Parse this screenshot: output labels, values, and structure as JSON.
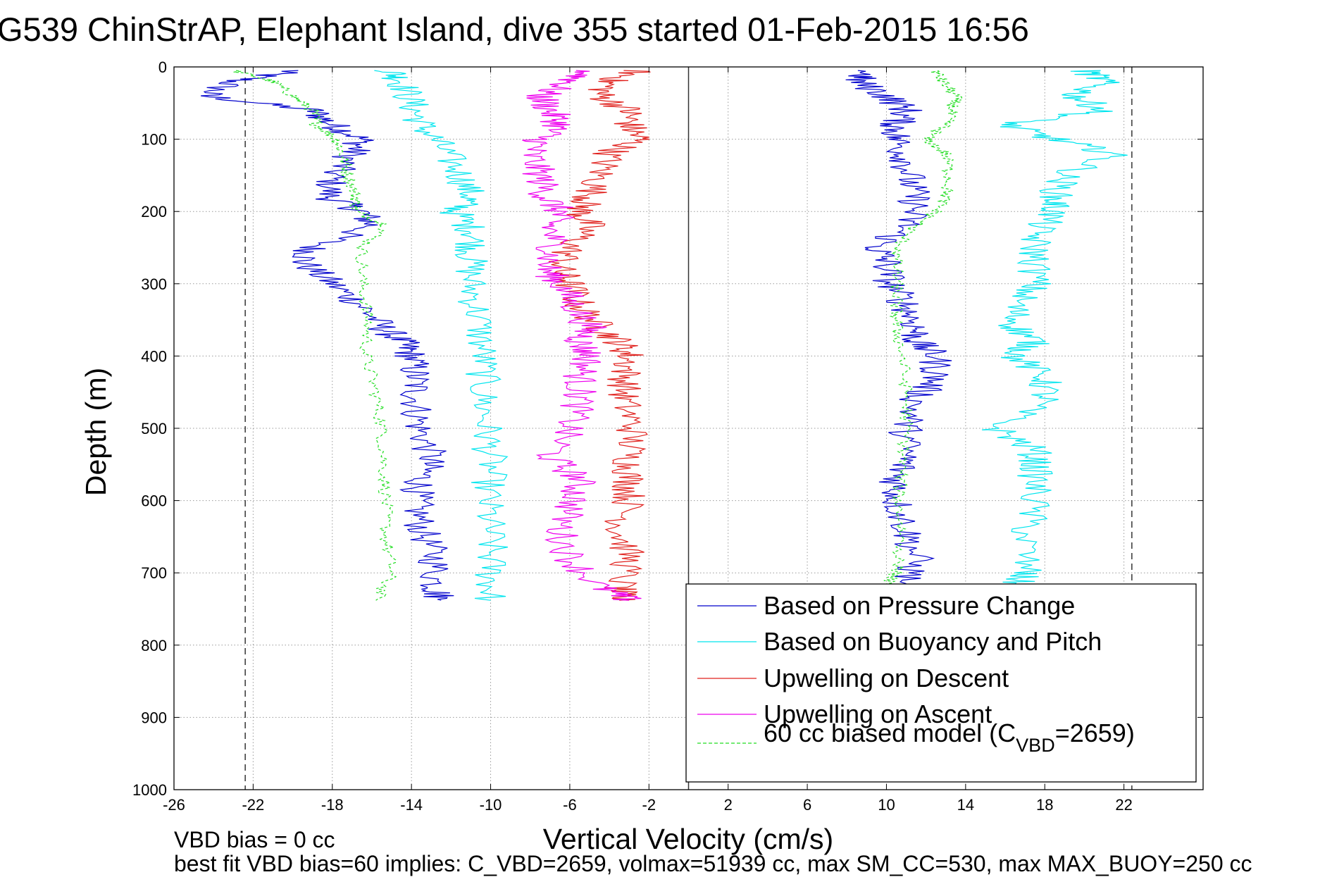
{
  "chart_data": {
    "type": "line",
    "title": "G539 ChinStrAP, Elephant Island, dive 355 started 01-Feb-2015 16:56",
    "xlabel": "Vertical Velocity (cm/s)",
    "ylabel": "Depth (m)",
    "xlim": [
      -26,
      26
    ],
    "ylim": [
      0,
      1000
    ],
    "y_reversed": true,
    "grid": true,
    "xticks": [
      -26,
      -22,
      -18,
      -14,
      -10,
      -6,
      -2,
      2,
      6,
      10,
      14,
      18,
      22
    ],
    "yticks": [
      0,
      100,
      200,
      300,
      400,
      500,
      600,
      700,
      800,
      900,
      1000
    ],
    "legend_placement": "bottom-right",
    "legend": [
      {
        "label": "Based on Pressure Change",
        "color": "#0000cc",
        "dash": false
      },
      {
        "label": "Based on Buoyancy and Pitch",
        "color": "#00e5ee",
        "dash": false
      },
      {
        "label": "Upwelling on Descent",
        "color": "#e0201c",
        "dash": false
      },
      {
        "label": "Upwelling on Ascent",
        "color": "#ee00ee",
        "dash": false
      },
      {
        "label_pre": "60 cc biased model (C",
        "label_sub": "VBD",
        "label_post": "=2659)",
        "color": "#22dd22",
        "dash": true
      }
    ],
    "reference_lines": {
      "x_solid": 0,
      "x_dashed": [
        -22.4,
        22.4
      ]
    },
    "series": [
      {
        "key": "pressure_descent",
        "color": "#0000cc",
        "dash": false,
        "y": [
          5,
          20,
          40,
          60,
          80,
          100,
          120,
          150,
          180,
          200,
          220,
          250,
          270,
          300,
          330,
          360,
          380,
          400,
          430,
          460,
          500,
          540,
          570,
          600,
          640,
          680,
          720,
          738
        ],
        "x": [
          -20,
          -23,
          -24.5,
          -19,
          -18,
          -16.5,
          -17,
          -18,
          -18.2,
          -16.5,
          -16,
          -19,
          -19.5,
          -18,
          -16.5,
          -15.5,
          -14.5,
          -14,
          -13.8,
          -13.8,
          -13.6,
          -13,
          -13.5,
          -13.8,
          -13.5,
          -12.8,
          -12.8,
          -12.5
        ]
      },
      {
        "key": "buoyancy_descent",
        "color": "#00e5ee",
        "dash": false,
        "y": [
          5,
          20,
          50,
          80,
          110,
          150,
          180,
          200,
          230,
          260,
          300,
          350,
          400,
          450,
          500,
          550,
          600,
          650,
          700,
          738
        ],
        "x": [
          -15,
          -14.5,
          -14,
          -13.5,
          -12.5,
          -11.5,
          -11,
          -11.8,
          -10.8,
          -11,
          -11,
          -10.6,
          -10.4,
          -10.4,
          -10.2,
          -10,
          -10.2,
          -10,
          -10,
          -10
        ]
      },
      {
        "key": "model_descent",
        "color": "#22dd22",
        "dash": true,
        "y": [
          5,
          20,
          40,
          60,
          80,
          100,
          120,
          150,
          180,
          200,
          220,
          250,
          300,
          350,
          400,
          450,
          500,
          550,
          600,
          650,
          700,
          738
        ],
        "x": [
          -23,
          -21,
          -20,
          -19,
          -18.8,
          -17.8,
          -17.5,
          -17.2,
          -16.8,
          -16.8,
          -15.2,
          -16.5,
          -16.5,
          -16.2,
          -16.3,
          -15.8,
          -15.5,
          -15.4,
          -15.3,
          -15.3,
          -15,
          -15.8
        ]
      },
      {
        "key": "upwelling_descent",
        "color": "#e0201c",
        "dash": false,
        "y": [
          5,
          20,
          40,
          60,
          80,
          100,
          120,
          150,
          180,
          200,
          220,
          250,
          280,
          300,
          330,
          360,
          380,
          400,
          430,
          460,
          500,
          540,
          570,
          600,
          640,
          680,
          720,
          738
        ],
        "x": [
          -2.5,
          -4,
          -4.5,
          -3,
          -3,
          -2.5,
          -4,
          -4.5,
          -5,
          -5.5,
          -5,
          -6,
          -6.5,
          -6,
          -5.5,
          -4.5,
          -3.5,
          -3,
          -3.2,
          -3.3,
          -2.8,
          -3,
          -3,
          -3,
          -3.5,
          -3,
          -3.5,
          -3.5
        ]
      },
      {
        "key": "upwelling_ascent",
        "color": "#ee00ee",
        "dash": false,
        "y": [
          5,
          20,
          40,
          60,
          80,
          100,
          120,
          150,
          180,
          200,
          220,
          250,
          280,
          300,
          330,
          360,
          380,
          400,
          430,
          460,
          500,
          540,
          570,
          600,
          640,
          680,
          720,
          738
        ],
        "x": [
          -5,
          -6,
          -7.5,
          -7,
          -6.5,
          -7.5,
          -8,
          -7.5,
          -7.2,
          -6.5,
          -7,
          -6.8,
          -7.2,
          -6.5,
          -5.8,
          -5,
          -5.5,
          -5,
          -5.5,
          -5.5,
          -6,
          -7,
          -5.5,
          -5.8,
          -6.5,
          -6,
          -4.5,
          -3
        ]
      },
      {
        "key": "pressure_ascent",
        "color": "#0000cc",
        "dash": false,
        "y": [
          5,
          20,
          40,
          60,
          80,
          100,
          130,
          160,
          190,
          220,
          250,
          270,
          300,
          330,
          360,
          380,
          400,
          430,
          460,
          500,
          540,
          570,
          600,
          640,
          680,
          715
        ],
        "x": [
          9,
          8.5,
          10,
          11,
          10.5,
          10.5,
          11,
          11.2,
          11.5,
          11,
          9.5,
          10,
          10.2,
          11,
          11.5,
          11.5,
          12.5,
          12.5,
          11.5,
          11,
          11,
          10.5,
          10.5,
          11,
          11.5,
          11
        ]
      },
      {
        "key": "buoyancy_ascent",
        "color": "#00e5ee",
        "dash": false,
        "y": [
          5,
          20,
          40,
          60,
          80,
          100,
          120,
          150,
          180,
          200,
          230,
          260,
          300,
          330,
          360,
          380,
          400,
          430,
          460,
          500,
          530,
          560,
          600,
          650,
          700,
          715
        ],
        "x": [
          20,
          21,
          19.5,
          21,
          16,
          18.5,
          21.5,
          19,
          18.5,
          18.5,
          17.5,
          17.5,
          17.5,
          16.5,
          16.5,
          17.5,
          16.5,
          18,
          18,
          15.5,
          17.5,
          17.5,
          17.5,
          17,
          17,
          16.5
        ]
      },
      {
        "key": "model_ascent",
        "color": "#22dd22",
        "dash": true,
        "y": [
          5,
          20,
          40,
          60,
          80,
          100,
          120,
          150,
          180,
          200,
          230,
          260,
          300,
          330,
          360,
          400,
          450,
          500,
          550,
          600,
          650,
          700,
          715
        ],
        "x": [
          12.5,
          12.8,
          13.5,
          13.3,
          13,
          12,
          13,
          13.2,
          13,
          12.5,
          11,
          10.5,
          10.5,
          10.5,
          10.5,
          10.8,
          11,
          11,
          10.8,
          10.6,
          10.8,
          10.5,
          10
        ]
      }
    ],
    "notes": {
      "line1": "VBD bias = 0 cc",
      "line2": "best fit VBD bias=60 implies: C_VBD=2659, volmax=51939 cc, max SM_CC=530, max MAX_BUOY=250 cc"
    }
  }
}
